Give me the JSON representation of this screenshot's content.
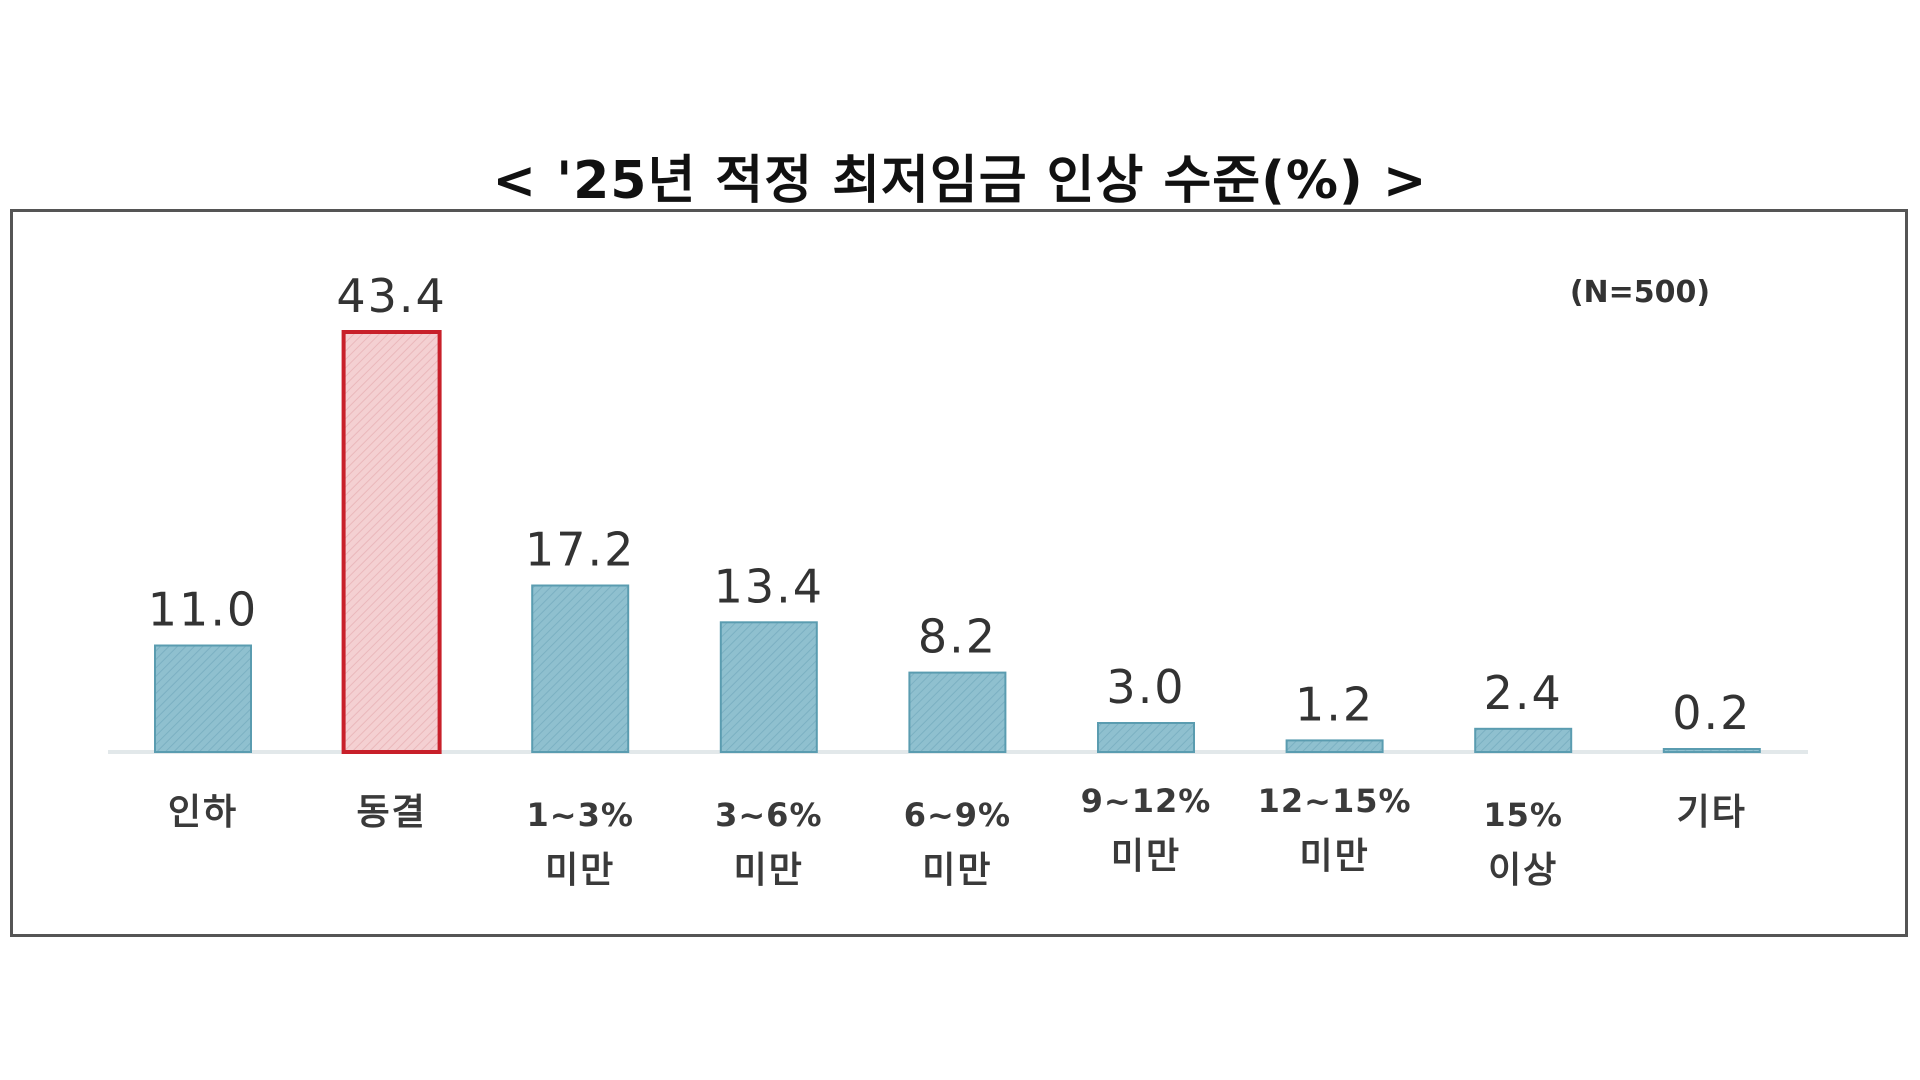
{
  "chart_data": {
    "type": "bar",
    "title": "< '25년 적정 최저임금 인상 수준(%) >",
    "note": "(N=500)",
    "categories": [
      [
        "인하"
      ],
      [
        "동결"
      ],
      [
        "1~3%",
        "미만"
      ],
      [
        "3~6%",
        "미만"
      ],
      [
        "6~9%",
        "미만"
      ],
      [
        "9~12%",
        "미만"
      ],
      [
        "12~15%",
        "미만"
      ],
      [
        "15%",
        "이상"
      ],
      [
        "기타"
      ]
    ],
    "values": [
      11.0,
      43.4,
      17.2,
      13.4,
      8.2,
      3.0,
      1.2,
      2.4,
      0.2
    ],
    "value_labels": [
      "11.0",
      "43.4",
      "17.2",
      "13.4",
      "8.2",
      "3.0",
      "1.2",
      "2.4",
      "0.2"
    ],
    "highlight_index": 1,
    "ylim": [
      0,
      43.4
    ],
    "grid": false,
    "colors": {
      "bar": "#8fc0cf",
      "bar_stroke": "#5a9cb0",
      "highlight": "#f2c9cb",
      "highlight_stroke": "#c8202a",
      "baseline": "#e2e8ea"
    }
  }
}
